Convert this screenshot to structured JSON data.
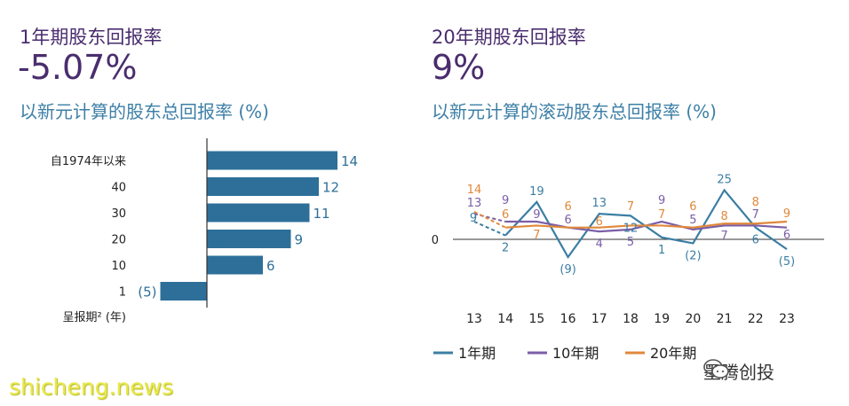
{
  "left_panel": {
    "kpi_label": "1年期股东回报率",
    "kpi_value": "-5.07%",
    "subtitle": "以新元计算的股东总回报率 (%)"
  },
  "right_panel": {
    "kpi_label": "20年期股东回报率",
    "kpi_value": "9%",
    "subtitle": "以新元计算的滚动股东总回报率 (%)"
  },
  "colors": {
    "bar": "#2e6f99",
    "one_year": "#3b7ea3",
    "ten_year": "#7b5ea7",
    "twenty_year": "#e0883a",
    "kpi_text": "#4a2d6e",
    "subtitle": "#3d7fa6"
  },
  "chart_data": [
    {
      "type": "bar",
      "orientation": "horizontal",
      "categories": [
        "自1974年以来",
        "40",
        "30",
        "20",
        "10",
        "1"
      ],
      "values": [
        14,
        12,
        11,
        9,
        6,
        -5
      ],
      "value_labels": [
        "14",
        "12",
        "11",
        "9",
        "6",
        "(5)"
      ],
      "ylabel": "呈报期² (年)",
      "xlim": [
        -5,
        14
      ]
    },
    {
      "type": "line",
      "x": [
        "13",
        "14",
        "15",
        "16",
        "17",
        "18",
        "19",
        "20",
        "21",
        "22",
        "23"
      ],
      "zero_label": "0",
      "ylim": [
        -9,
        25
      ],
      "series": [
        {
          "name": "1年期",
          "values": [
            9,
            2,
            19,
            -9,
            13,
            12,
            1,
            -2,
            25,
            6,
            -5
          ],
          "labels": [
            "9",
            "2",
            "19",
            "(9)",
            "13",
            "12",
            "1",
            "(2)",
            "25",
            "6",
            "(5)"
          ]
        },
        {
          "name": "10年期",
          "values": [
            13,
            9,
            9,
            6,
            4,
            5,
            9,
            5,
            7,
            7,
            6
          ],
          "labels": [
            "13",
            "9",
            "9",
            "6",
            "4",
            "5",
            "9",
            "5",
            "7",
            "7",
            "6"
          ]
        },
        {
          "name": "20年期",
          "values": [
            14,
            6,
            7,
            6,
            6,
            7,
            7,
            6,
            8,
            8,
            9
          ],
          "labels": [
            "14",
            "6",
            "7",
            "6",
            "6",
            "7",
            "7",
            "6",
            "8",
            "8",
            "9"
          ]
        }
      ]
    }
  ],
  "watermark": "shicheng.news",
  "brand": "墨腾创投"
}
